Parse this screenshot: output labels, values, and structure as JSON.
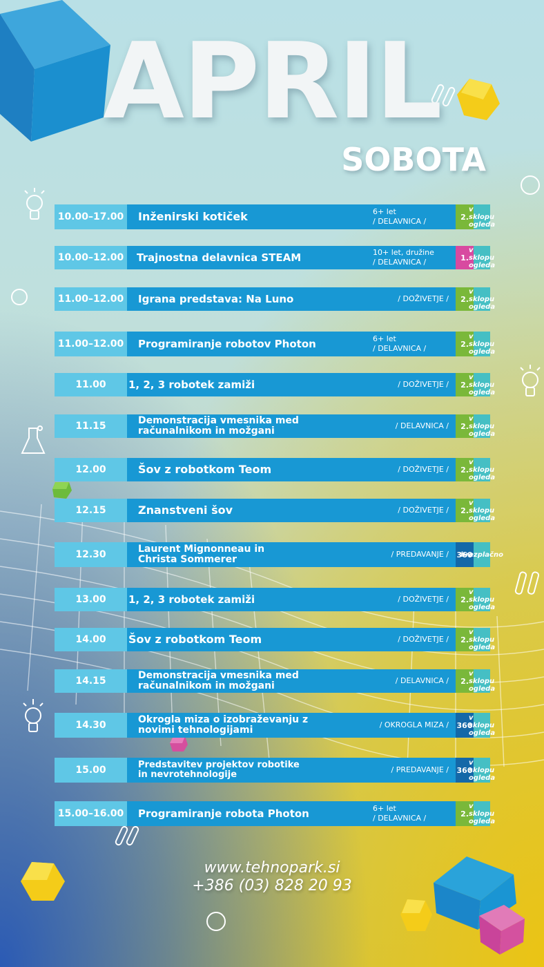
{
  "header": {
    "month": "APRIL",
    "day": "SOBOTA"
  },
  "colors": {
    "time_bg": "#5fc7e6",
    "main_bg": "#1898d4",
    "badge_green": "#7ab83a",
    "badge_pink": "#d84aa0",
    "badge_360": "#1468a8",
    "price_bg": "#45bfc4"
  },
  "events": [
    {
      "time": "10.00–17.00",
      "name": "Inženirski kotiček",
      "info1": "6+ let",
      "info2": "/ DELAVNICA /",
      "badge": "2.",
      "badge_color": "green",
      "price": "v sklopu ogleda"
    },
    {
      "time": "10.00–12.00",
      "name": "Trajnostna delavnica STEAM",
      "info1": "10+ let, družine",
      "info2": "/ DELAVNICA /",
      "badge": "1.",
      "badge_color": "pink",
      "price": "v sklopu ogleda"
    },
    {
      "time": "11.00–12.00",
      "name": "Igrana predstava: Na Luno",
      "info1": "",
      "info2": "/ DOŽIVETJE /",
      "badge": "2.",
      "badge_color": "green",
      "price": "v sklopu ogleda"
    },
    {
      "time": "11.00–12.00",
      "name": "Programiranje robotov Photon",
      "info1": "6+ let",
      "info2": "/ DELAVNICA /",
      "badge": "2.",
      "badge_color": "green",
      "price": "v sklopu ogleda"
    },
    {
      "time": "11.00",
      "name": "1, 2, 3 robotek zamiži",
      "info1": "",
      "info2": "/ DOŽIVETJE /",
      "badge": "2.",
      "badge_color": "green",
      "price": "v sklopu ogleda"
    },
    {
      "time": "11.15",
      "name": "Demonstracija vmesnika med računalnikom in možgani",
      "info1": "",
      "info2": "/ DELAVNICA /",
      "badge": "2.",
      "badge_color": "green",
      "price": "v sklopu ogleda"
    },
    {
      "time": "12.00",
      "name": "Šov z robotkom Teom",
      "info1": "",
      "info2": "/ DOŽIVETJE /",
      "badge": "2.",
      "badge_color": "green",
      "price": "v sklopu ogleda"
    },
    {
      "time": "12.15",
      "name": "Znanstveni šov",
      "info1": "",
      "info2": "/ DOŽIVETJE /",
      "badge": "2.",
      "badge_color": "green",
      "price": "v sklopu ogleda"
    },
    {
      "time": "12.30",
      "name": "Laurent Mignonneau in Christa Sommerer",
      "info1": "",
      "info2": "/ PREDAVANJE /",
      "badge": "360",
      "badge_color": "dark",
      "price": "brezplačno"
    },
    {
      "time": "13.00",
      "name": "1, 2, 3 robotek zamiži",
      "info1": "",
      "info2": "/ DOŽIVETJE /",
      "badge": "2.",
      "badge_color": "green",
      "price": "v sklopu ogleda"
    },
    {
      "time": "14.00",
      "name": "Šov z robotkom Teom",
      "info1": "",
      "info2": "/ DOŽIVETJE /",
      "badge": "2.",
      "badge_color": "green",
      "price": "v sklopu ogleda"
    },
    {
      "time": "14.15",
      "name": "Demonstracija vmesnika med računalnikom in možgani",
      "info1": "",
      "info2": "/ DELAVNICA /",
      "badge": "2.",
      "badge_color": "green",
      "price": "v sklopu ogleda"
    },
    {
      "time": "14.30",
      "name": "Okrogla miza o izobraževanju z novimi tehnologijami",
      "info1": "",
      "info2": "/ OKROGLA MIZA /",
      "badge": "360",
      "badge_color": "dark",
      "price": "v sklopu ogleda"
    },
    {
      "time": "15.00",
      "name": "Predstavitev projektov robotike in nevrotehnologije",
      "info1": "",
      "info2": "/ PREDAVANJE /",
      "badge": "360",
      "badge_color": "dark",
      "price": "v sklopu ogleda"
    },
    {
      "time": "15.00–16.00",
      "name": "Programiranje robota Photon",
      "info1": "6+ let",
      "info2": "/ DELAVNICA /",
      "badge": "2.",
      "badge_color": "green",
      "price": "v sklopu ogleda"
    }
  ],
  "footer": {
    "website": "www.tehnopark.si",
    "phone": "+386 (03) 828 20 93"
  }
}
